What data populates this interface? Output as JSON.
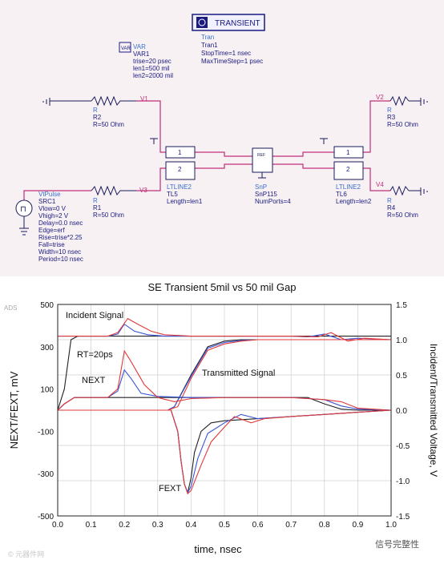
{
  "schematic": {
    "transient_button": "TRANSIENT",
    "tran": {
      "lines": [
        "Tran",
        "Tran1",
        "StopTime=1 nsec",
        "MaxTimeStep=1 psec"
      ]
    },
    "var": {
      "lines": [
        "VAR",
        "VAR1",
        "trise=20 psec",
        "len1=500 mil",
        "len2=2000 mil"
      ]
    },
    "wire_labels": {
      "v1": "V1",
      "v2": "V2",
      "v3": "V3",
      "v4": "V4"
    },
    "r2": {
      "lines": [
        "R",
        "R2",
        "R=50 Ohm"
      ]
    },
    "r1": {
      "lines": [
        "R",
        "R1",
        "R=50 Ohm"
      ]
    },
    "r3": {
      "lines": [
        "R",
        "R3",
        "R=50 Ohm"
      ]
    },
    "r4": {
      "lines": [
        "R",
        "R4",
        "R=50 Ohm"
      ]
    },
    "tl5": {
      "lines": [
        "LTLINE2",
        "TL5",
        "Length=len1"
      ]
    },
    "tl6": {
      "lines": [
        "LTLINE2",
        "TL6",
        "Length=len2"
      ]
    },
    "snp": {
      "lines": [
        "SnP",
        "SnP115",
        "NumPorts=4"
      ]
    },
    "src": {
      "lines": [
        "VtPulse",
        "SRC1",
        "Vlow=0 V",
        "Vhigh=2 V",
        "Delay=0.0 nsec",
        "Edge=erf",
        "Rise=trise*2.25",
        "Fall=trise",
        "Width=10 nsec",
        "Period=10 nsec"
      ]
    },
    "port_labels": {
      "one": "1",
      "two": "2"
    }
  },
  "chart_data": {
    "type": "line",
    "title": "SE Transient 5mil vs 50 mil Gap",
    "xlabel": "time, nsec",
    "ylabel_left": "NEXT/FEXT, mV",
    "ylabel_right": "Incident/Transmitted Voltage, V",
    "corner_label": "ADS",
    "xlim": [
      0.0,
      1.0
    ],
    "ylim_left": [
      -500,
      500
    ],
    "ylim_right": [
      -1.5,
      1.5
    ],
    "x_ticks": [
      "0.0",
      "0.1",
      "0.2",
      "0.3",
      "0.4",
      "0.5",
      "0.6",
      "0.7",
      "0.8",
      "0.9",
      "1.0"
    ],
    "y_ticks_left": [
      "500",
      "300",
      "100",
      "-100",
      "-300",
      "-500"
    ],
    "y_ticks_right": [
      "1.5",
      "1.0",
      "0.5",
      "0.0",
      "-0.5",
      "-1.0",
      "-1.5"
    ],
    "grid": true,
    "annotations": [
      "Incident Signal",
      "RT=20ps",
      "Transmitted Signal",
      "NEXT",
      "FEXT"
    ],
    "series": [
      {
        "color": "#222222",
        "axis": "right",
        "x": [
          0,
          0.02,
          0.04,
          0.06,
          0.1,
          0.2,
          0.3,
          0.4,
          0.5,
          0.6,
          0.7,
          0.8,
          0.9,
          1.0
        ],
        "y": [
          0,
          0.3,
          1.0,
          1.05,
          1.05,
          1.05,
          1.05,
          1.05,
          1.05,
          1.05,
          1.05,
          1.05,
          1.05,
          1.05
        ]
      },
      {
        "color": "#3a55d8",
        "axis": "right",
        "x": [
          0,
          0.05,
          0.15,
          0.18,
          0.2,
          0.23,
          0.27,
          0.32,
          0.4,
          0.5,
          0.6,
          0.7,
          0.75,
          0.8,
          0.85,
          0.9,
          1.0
        ],
        "y": [
          1.05,
          1.05,
          1.05,
          1.08,
          1.22,
          1.12,
          1.07,
          1.05,
          1.05,
          1.05,
          1.05,
          1.05,
          1.04,
          1.08,
          1.0,
          1.02,
          1.0
        ]
      },
      {
        "color": "#e03a3a",
        "axis": "right",
        "x": [
          0,
          0.05,
          0.15,
          0.18,
          0.21,
          0.24,
          0.28,
          0.32,
          0.4,
          0.5,
          0.6,
          0.7,
          0.78,
          0.82,
          0.87,
          0.92,
          1.0
        ],
        "y": [
          1.05,
          1.05,
          1.05,
          1.1,
          1.3,
          1.22,
          1.12,
          1.07,
          1.05,
          1.05,
          1.05,
          1.05,
          1.04,
          1.1,
          0.98,
          1.02,
          1.0
        ]
      },
      {
        "color": "#222222",
        "axis": "right",
        "x": [
          0,
          0.33,
          0.35,
          0.4,
          0.45,
          0.5,
          0.55,
          0.6,
          0.7,
          0.8,
          0.9,
          1.0
        ],
        "y": [
          0,
          0,
          0.05,
          0.5,
          0.9,
          0.98,
          1.0,
          1.0,
          1.0,
          1.0,
          1.0,
          1.0
        ]
      },
      {
        "color": "#3a55d8",
        "axis": "right",
        "x": [
          0,
          0.33,
          0.35,
          0.4,
          0.45,
          0.5,
          0.55,
          0.6,
          0.7,
          0.8,
          0.9,
          1.0
        ],
        "y": [
          0,
          0,
          0.05,
          0.48,
          0.88,
          0.96,
          0.99,
          1.0,
          1.0,
          1.0,
          1.0,
          1.0
        ]
      },
      {
        "color": "#e03a3a",
        "axis": "right",
        "x": [
          0,
          0.33,
          0.36,
          0.4,
          0.45,
          0.5,
          0.55,
          0.6,
          0.7,
          0.8,
          0.9,
          1.0
        ],
        "y": [
          0,
          0,
          0.05,
          0.45,
          0.85,
          0.94,
          0.98,
          1.0,
          1.0,
          1.0,
          1.0,
          1.0
        ]
      },
      {
        "color": "#222222",
        "axis": "left",
        "x": [
          0,
          0.02,
          0.05,
          0.1,
          0.15,
          0.2,
          0.3,
          0.4,
          0.5,
          0.6,
          0.7,
          0.75,
          0.8,
          0.85,
          0.9,
          1.0
        ],
        "y": [
          0,
          30,
          60,
          60,
          60,
          60,
          60,
          60,
          60,
          60,
          60,
          60,
          30,
          5,
          0,
          0
        ]
      },
      {
        "color": "#3a55d8",
        "axis": "left",
        "x": [
          0,
          0.02,
          0.05,
          0.15,
          0.18,
          0.2,
          0.22,
          0.25,
          0.3,
          0.4,
          0.5,
          0.6,
          0.7,
          0.75,
          0.8,
          0.85,
          0.9,
          1.0
        ],
        "y": [
          0,
          30,
          60,
          60,
          90,
          190,
          150,
          80,
          65,
          60,
          60,
          60,
          60,
          55,
          50,
          20,
          5,
          0
        ]
      },
      {
        "color": "#e03a3a",
        "axis": "left",
        "x": [
          0,
          0.02,
          0.05,
          0.15,
          0.18,
          0.2,
          0.22,
          0.26,
          0.3,
          0.35,
          0.4,
          0.5,
          0.6,
          0.7,
          0.75,
          0.8,
          0.85,
          0.9,
          1.0
        ],
        "y": [
          0,
          30,
          60,
          60,
          100,
          280,
          230,
          120,
          60,
          40,
          55,
          60,
          60,
          60,
          55,
          50,
          40,
          10,
          0
        ]
      },
      {
        "color": "#222222",
        "axis": "left",
        "x": [
          0,
          0.34,
          0.36,
          0.37,
          0.38,
          0.39,
          0.4,
          0.41,
          0.43,
          0.46,
          0.5,
          0.6,
          0.7,
          0.8,
          0.9,
          1.0
        ],
        "y": [
          0,
          0,
          -100,
          -240,
          -350,
          -390,
          -320,
          -200,
          -100,
          -60,
          -50,
          -40,
          -30,
          -20,
          -10,
          0
        ]
      },
      {
        "color": "#3a55d8",
        "axis": "left",
        "x": [
          0,
          0.34,
          0.36,
          0.37,
          0.38,
          0.39,
          0.4,
          0.42,
          0.45,
          0.48,
          0.5,
          0.55,
          0.6,
          0.7,
          0.8,
          0.9,
          1.0
        ],
        "y": [
          0,
          0,
          -100,
          -240,
          -350,
          -390,
          -360,
          -230,
          -110,
          -80,
          -60,
          -20,
          -40,
          -30,
          -20,
          -10,
          0
        ]
      },
      {
        "color": "#e03a3a",
        "axis": "left",
        "x": [
          0,
          0.34,
          0.36,
          0.37,
          0.38,
          0.39,
          0.4,
          0.43,
          0.46,
          0.5,
          0.53,
          0.58,
          0.62,
          0.7,
          0.8,
          0.9,
          1.0
        ],
        "y": [
          0,
          0,
          -100,
          -240,
          -350,
          -395,
          -380,
          -260,
          -150,
          -80,
          -30,
          -60,
          -40,
          -30,
          -20,
          -10,
          0
        ]
      }
    ]
  },
  "watermark": {
    "left": "© 元器件网",
    "right": "信号完整性"
  }
}
